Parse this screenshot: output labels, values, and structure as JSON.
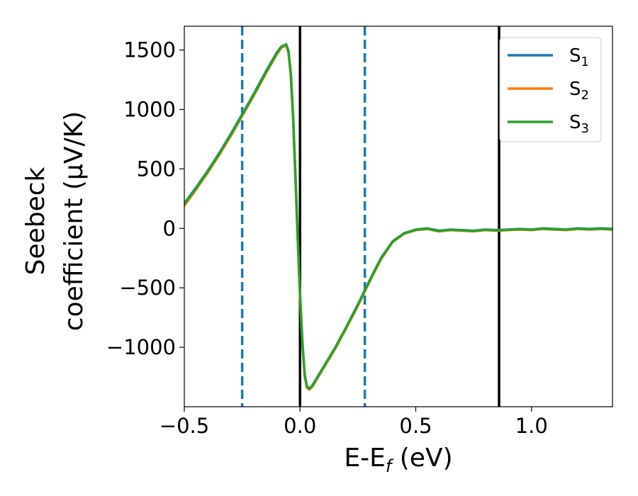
{
  "chart_data": {
    "type": "line",
    "xlabel": "E-E",
    "xlabel_sub": "f",
    "xlabel_unit": " (eV)",
    "ylabel_line1": "Seebeck",
    "ylabel_line2": "coefficient  (μV/K)",
    "xlim": [
      -0.5,
      1.35
    ],
    "ylim": [
      -1500,
      1700
    ],
    "xticks": [
      -0.5,
      0.0,
      0.5,
      1.0
    ],
    "xtick_labels": [
      "−0.5",
      "0.0",
      "0.5",
      "1.0"
    ],
    "yticks": [
      1500,
      1000,
      500,
      0,
      -500,
      -1000
    ],
    "ytick_labels": [
      "1500",
      "1000",
      "500",
      "0",
      "−500",
      "−1000"
    ],
    "grid": false,
    "legend_position": "upper-right",
    "vlines": [
      {
        "x": -0.25,
        "style": "dashed",
        "color": "#1f77b4"
      },
      {
        "x": 0.28,
        "style": "dashed",
        "color": "#1f77b4"
      },
      {
        "x": 0.0,
        "style": "solid",
        "color": "#000000"
      },
      {
        "x": 0.86,
        "style": "solid",
        "color": "#000000"
      }
    ],
    "x": [
      -0.5,
      -0.45,
      -0.4,
      -0.35,
      -0.3,
      -0.25,
      -0.2,
      -0.15,
      -0.1,
      -0.08,
      -0.06,
      -0.05,
      -0.04,
      -0.03,
      -0.02,
      -0.01,
      0.0,
      0.01,
      0.02,
      0.03,
      0.04,
      0.05,
      0.06,
      0.1,
      0.15,
      0.2,
      0.25,
      0.3,
      0.35,
      0.4,
      0.45,
      0.5,
      0.55,
      0.6,
      0.65,
      0.7,
      0.75,
      0.8,
      0.85,
      0.9,
      0.95,
      1.0,
      1.05,
      1.1,
      1.15,
      1.2,
      1.25,
      1.3,
      1.35
    ],
    "series": [
      {
        "name": "S",
        "sub": "1",
        "color": "#1f77b4",
        "values": [
          210,
          340,
          480,
          630,
          790,
          960,
          1130,
          1310,
          1480,
          1530,
          1545,
          1490,
          1300,
          950,
          450,
          -80,
          -550,
          -950,
          -1230,
          -1330,
          -1345,
          -1330,
          -1300,
          -1170,
          -1010,
          -830,
          -640,
          -440,
          -250,
          -110,
          -40,
          -10,
          0,
          -20,
          -10,
          -15,
          -20,
          -10,
          -15,
          -10,
          -5,
          -10,
          0,
          -5,
          -10,
          0,
          -5,
          0,
          -5
        ]
      },
      {
        "name": "S",
        "sub": "2",
        "color": "#ff7f0e",
        "values": [
          190,
          325,
          465,
          615,
          775,
          945,
          1115,
          1295,
          1465,
          1520,
          1540,
          1480,
          1290,
          940,
          440,
          -90,
          -560,
          -960,
          -1240,
          -1340,
          -1355,
          -1340,
          -1310,
          -1180,
          -1020,
          -840,
          -650,
          -450,
          -260,
          -115,
          -45,
          -15,
          -5,
          -25,
          -15,
          -20,
          -25,
          -15,
          -20,
          -15,
          -10,
          -15,
          -5,
          -10,
          -15,
          -5,
          -10,
          -5,
          -10
        ]
      },
      {
        "name": "S",
        "sub": "3",
        "color": "#2ca02c",
        "values": [
          205,
          335,
          475,
          625,
          785,
          955,
          1125,
          1305,
          1475,
          1528,
          1548,
          1488,
          1298,
          948,
          448,
          -82,
          -552,
          -952,
          -1232,
          -1332,
          -1347,
          -1332,
          -1302,
          -1172,
          -1012,
          -832,
          -642,
          -442,
          -252,
          -112,
          -42,
          -12,
          -2,
          -22,
          -12,
          -17,
          -22,
          -12,
          -17,
          -12,
          -7,
          -12,
          -2,
          -7,
          -12,
          -2,
          -7,
          -2,
          -7
        ]
      }
    ]
  }
}
